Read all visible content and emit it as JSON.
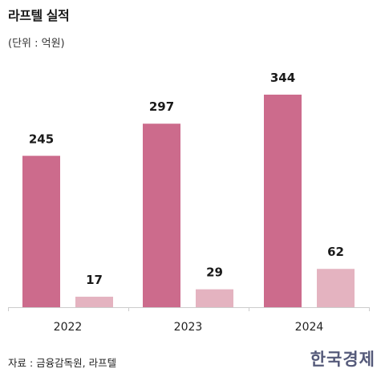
{
  "header": {
    "title": "라프텔 실적",
    "unit": "(단위 : 억원)"
  },
  "footer": {
    "source": "자료 : 금융감독원, 라프텔",
    "brand": "한국경제"
  },
  "colors": {
    "series_1": "#cc6b8c",
    "series_2": "#e4b3c0",
    "axis": "#cccccc",
    "brand": "#555a7a"
  },
  "chart_data": {
    "type": "bar",
    "title": "라프텔 실적",
    "ylabel": "",
    "xlabel": "",
    "categories": [
      "2022",
      "2023",
      "2024"
    ],
    "series": [
      {
        "values": [
          245,
          297,
          344
        ]
      },
      {
        "values": [
          17,
          29,
          62
        ]
      }
    ],
    "ylim": [
      0,
      344
    ],
    "grid": false,
    "legend": "none"
  }
}
